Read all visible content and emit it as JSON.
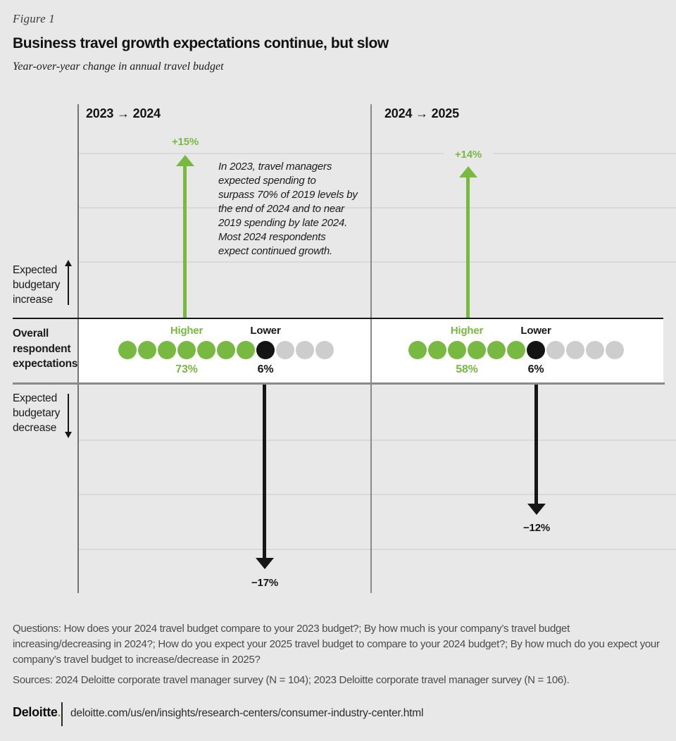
{
  "header": {
    "figure_label": "Figure 1",
    "title": "Business travel growth expectations continue, but slow",
    "subtitle": "Year-over-year change in annual travel budget"
  },
  "axis_captions": {
    "increase": "Expected budgetary increase",
    "middle": "Overall respondent expectations",
    "decrease": "Expected budgetary decrease"
  },
  "annotation": "In 2023, travel managers\nexpected spending to\nsurpass 70% of 2019 levels by\nthe end of 2024 and to near\n2019 spending by late 2024.\nMost 2024 respondents\nexpect continued growth.",
  "chart_data": {
    "type": "bar",
    "variant": "diverging-arrows-with-dot-unit-rows",
    "title": "Business travel growth expectations continue, but slow",
    "subtitle": "Year-over-year change in annual travel budget",
    "ylabel": "Year-over-year change in annual travel budget (%)",
    "ylim": [
      -20,
      17
    ],
    "gridline_values_pct": [
      15,
      10,
      5,
      -5,
      -10,
      -15
    ],
    "grid": true,
    "legend_position": "none",
    "panels": [
      {
        "period": "2023 → 2024",
        "expected_budget_change_increase_pct": 15,
        "expected_budget_change_decrease_pct": -17,
        "increase_label": "+15%",
        "decrease_label": "−17%",
        "higher": {
          "label": "Higher",
          "value_pct": 73,
          "value_label": "73%"
        },
        "lower": {
          "label": "Lower",
          "value_pct": 6,
          "value_label": "6%"
        },
        "dots": {
          "green": 7,
          "black": 1,
          "gray": 3
        }
      },
      {
        "period": "2024 → 2025",
        "expected_budget_change_increase_pct": 14,
        "expected_budget_change_decrease_pct": -12,
        "increase_label": "+14%",
        "decrease_label": "−12%",
        "higher": {
          "label": "Higher",
          "value_pct": 58,
          "value_label": "58%"
        },
        "lower": {
          "label": "Lower",
          "value_pct": 6,
          "value_label": "6%"
        },
        "dots": {
          "green": 6,
          "black": 1,
          "gray": 4
        }
      }
    ],
    "colors": {
      "green": "#78b942",
      "black": "#141414",
      "gray_dot": "#cdcdcd",
      "background": "#e8e8e8",
      "band_background": "#ffffff"
    }
  },
  "footer": {
    "questions": "Questions: How does your 2024 travel budget compare to your 2023 budget?; By how much is your company’s travel budget increasing/decreasing in 2024?; How do you expect your 2025 travel budget to compare to your 2024 budget?; By how much do you expect your company’s travel budget to increase/decrease in 2025?",
    "sources": "Sources: 2024 Deloitte corporate travel manager survey (N = 104); 2023 Deloitte corporate travel manager survey (N = 106).",
    "logo_text": "Deloitte",
    "logo_dot": ".",
    "url": "deloitte.com/us/en/insights/research-centers/consumer-industry-center.html"
  }
}
